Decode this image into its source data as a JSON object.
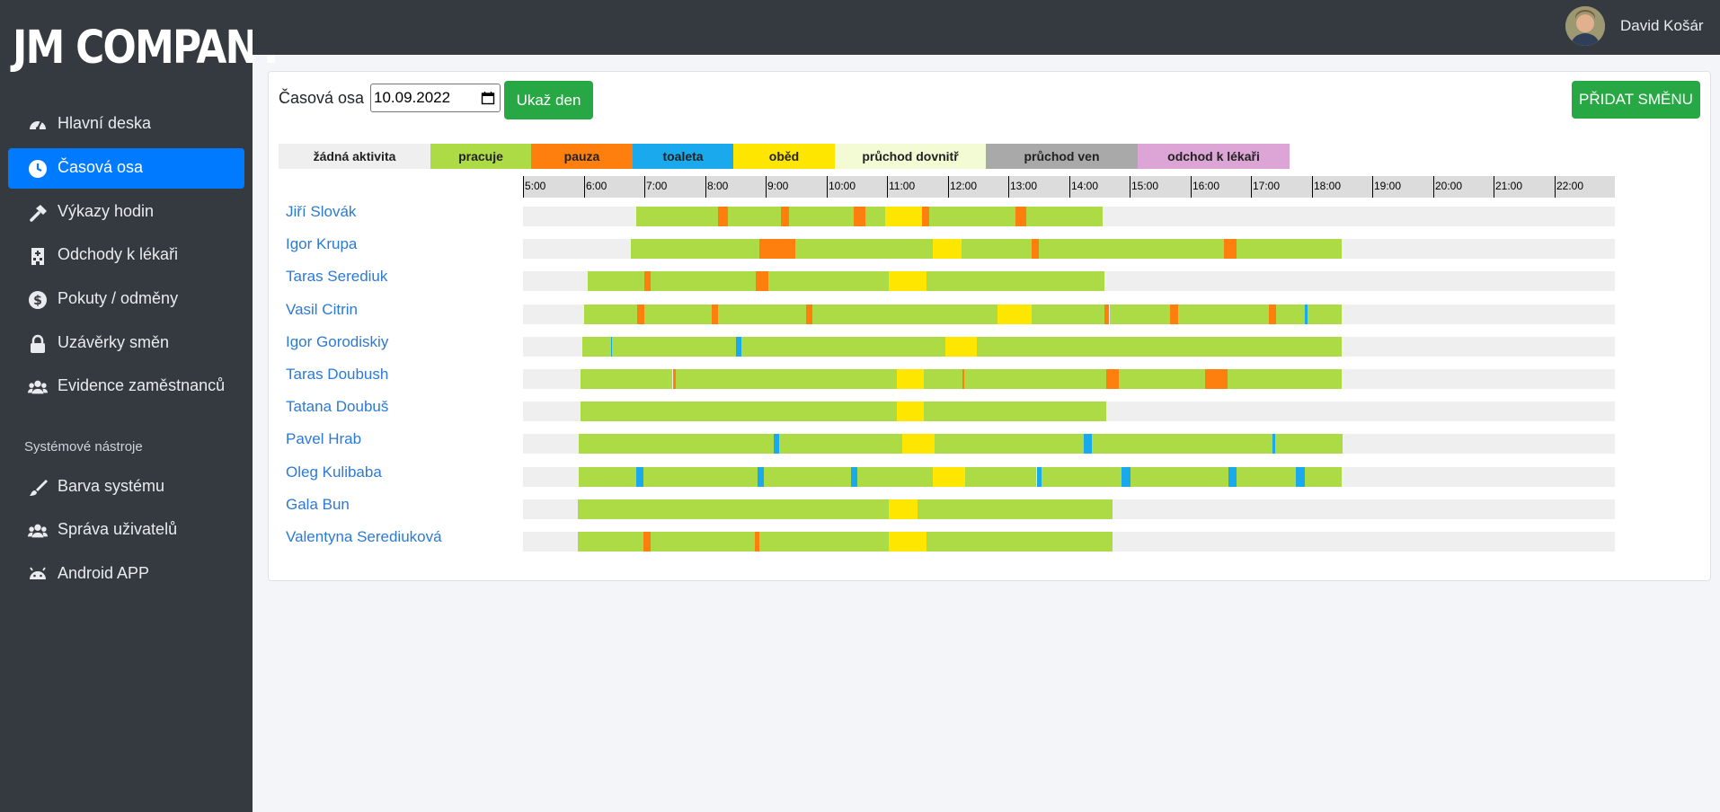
{
  "brand": {
    "logo_text": "JM COMPANY"
  },
  "sidebar": {
    "items": [
      {
        "label": "Hlavní deska",
        "icon": "dashboard-icon",
        "active": false
      },
      {
        "label": "Časová osa",
        "icon": "clock-icon",
        "active": true
      },
      {
        "label": "Výkazy hodin",
        "icon": "hammer-icon",
        "active": false
      },
      {
        "label": "Odchody k lékaři",
        "icon": "hospital-icon",
        "active": false
      },
      {
        "label": "Pokuty / odměny",
        "icon": "money-icon",
        "active": false
      },
      {
        "label": "Uzávěrky směn",
        "icon": "lock-icon",
        "active": false
      },
      {
        "label": "Evidence zaměstnanců",
        "icon": "users-icon",
        "active": false
      }
    ],
    "section_title": "Systémové nástroje",
    "tools": [
      {
        "label": "Barva systému",
        "icon": "paint-brush-icon"
      },
      {
        "label": "Správa uživatelů",
        "icon": "users-icon"
      },
      {
        "label": "Android APP",
        "icon": "android-icon"
      }
    ]
  },
  "topbar": {
    "user_name": "David Košár"
  },
  "toolbar": {
    "timeline_label": "Časová osa",
    "date_value": "10.09.2022",
    "show_day_label": "Ukaž den",
    "add_shift_label": "PŘIDAT SMĚNU"
  },
  "legend": [
    {
      "label": "žádná aktivita",
      "color": "#efefef"
    },
    {
      "label": "pracuje",
      "color": "#addb45"
    },
    {
      "label": "pauza",
      "color": "#ff7f0e"
    },
    {
      "label": "toaleta",
      "color": "#1aa9ec"
    },
    {
      "label": "oběd",
      "color": "#ffe600"
    },
    {
      "label": "průchod dovnitř",
      "color": "#f2fbd3"
    },
    {
      "label": "průchod ven",
      "color": "#a9a9a9"
    },
    {
      "label": "odchod k lékaři",
      "color": "#dda5d6"
    }
  ],
  "timeline": {
    "start_hour": 5,
    "end_hour": 23,
    "hour_labels": [
      "5:00",
      "6:00",
      "7:00",
      "8:00",
      "9:00",
      "10:00",
      "11:00",
      "12:00",
      "13:00",
      "14:00",
      "15:00",
      "16:00",
      "17:00",
      "18:00",
      "19:00",
      "20:00",
      "21:00",
      "22:00"
    ],
    "employees": [
      {
        "name": "Jiří Slovák",
        "segments": [
          [
            "06:52",
            "08:13",
            "pracuje"
          ],
          [
            "08:13",
            "08:23",
            "pauza"
          ],
          [
            "08:23",
            "09:15",
            "pracuje"
          ],
          [
            "09:15",
            "09:23",
            "pauza"
          ],
          [
            "09:23",
            "10:27",
            "pracuje"
          ],
          [
            "10:27",
            "10:39",
            "pauza"
          ],
          [
            "10:39",
            "10:58",
            "pracuje"
          ],
          [
            "10:58",
            "11:35",
            "oběd"
          ],
          [
            "11:35",
            "11:42",
            "pauza"
          ],
          [
            "11:42",
            "13:07",
            "pracuje"
          ],
          [
            "13:07",
            "13:18",
            "pauza"
          ],
          [
            "13:18",
            "14:33",
            "pracuje"
          ]
        ]
      },
      {
        "name": "Igor Krupa",
        "segments": [
          [
            "06:47",
            "08:54",
            "pracuje"
          ],
          [
            "08:54",
            "09:29",
            "pauza"
          ],
          [
            "09:29",
            "11:45",
            "pracuje"
          ],
          [
            "11:45",
            "12:14",
            "oběd"
          ],
          [
            "12:14",
            "13:23",
            "pracuje"
          ],
          [
            "13:23",
            "13:30",
            "pauza"
          ],
          [
            "13:30",
            "16:33",
            "pracuje"
          ],
          [
            "16:33",
            "16:46",
            "pauza"
          ],
          [
            "16:46",
            "18:30",
            "pracuje"
          ]
        ]
      },
      {
        "name": "Taras Serediuk",
        "segments": [
          [
            "06:04",
            "07:00",
            "pracuje"
          ],
          [
            "07:00",
            "07:06",
            "pauza"
          ],
          [
            "07:06",
            "08:50",
            "pracuje"
          ],
          [
            "08:50",
            "09:03",
            "pauza"
          ],
          [
            "09:03",
            "11:02",
            "pracuje"
          ],
          [
            "11:02",
            "11:39",
            "oběd"
          ],
          [
            "11:39",
            "14:35",
            "pracuje"
          ]
        ]
      },
      {
        "name": "Vasil Citrin",
        "segments": [
          [
            "06:00",
            "06:53",
            "pracuje"
          ],
          [
            "06:53",
            "07:00",
            "pauza"
          ],
          [
            "07:00",
            "08:07",
            "pracuje"
          ],
          [
            "08:07",
            "08:13",
            "pauza"
          ],
          [
            "08:13",
            "09:40",
            "pracuje"
          ],
          [
            "09:40",
            "09:46",
            "pauza"
          ],
          [
            "09:46",
            "12:49",
            "pracuje"
          ],
          [
            "12:49",
            "13:23",
            "oběd"
          ],
          [
            "13:23",
            "14:35",
            "pracuje"
          ],
          [
            "14:35",
            "14:40",
            "pauza"
          ],
          [
            "14:40",
            "15:40",
            "pracuje"
          ],
          [
            "15:40",
            "15:48",
            "pauza"
          ],
          [
            "15:48",
            "17:18",
            "pracuje"
          ],
          [
            "17:18",
            "17:25",
            "pauza"
          ],
          [
            "17:25",
            "17:53",
            "pracuje"
          ],
          [
            "17:53",
            "17:56",
            "toaleta"
          ],
          [
            "17:56",
            "18:30",
            "pracuje"
          ]
        ]
      },
      {
        "name": "Igor Gorodiskiy",
        "segments": [
          [
            "05:59",
            "06:27",
            "pracuje"
          ],
          [
            "06:27",
            "06:28",
            "toaleta"
          ],
          [
            "06:28",
            "08:31",
            "pracuje"
          ],
          [
            "08:31",
            "08:36",
            "toaleta"
          ],
          [
            "08:36",
            "11:58",
            "pracuje"
          ],
          [
            "11:58",
            "12:29",
            "oběd"
          ],
          [
            "12:29",
            "18:30",
            "pracuje"
          ]
        ]
      },
      {
        "name": "Taras Doubush",
        "segments": [
          [
            "05:57",
            "07:28",
            "pracuje"
          ],
          [
            "07:28",
            "07:31",
            "pauza"
          ],
          [
            "07:31",
            "11:10",
            "pracuje"
          ],
          [
            "11:10",
            "11:36",
            "oběd"
          ],
          [
            "11:36",
            "12:15",
            "pracuje"
          ],
          [
            "12:15",
            "12:16",
            "pauza"
          ],
          [
            "12:16",
            "14:37",
            "pracuje"
          ],
          [
            "14:37",
            "14:49",
            "pauza"
          ],
          [
            "14:49",
            "16:15",
            "pracuje"
          ],
          [
            "16:15",
            "16:37",
            "pauza"
          ],
          [
            "16:37",
            "18:30",
            "pracuje"
          ]
        ]
      },
      {
        "name": "Tatana Doubuš",
        "segments": [
          [
            "05:57",
            "11:10",
            "pracuje"
          ],
          [
            "11:10",
            "11:36",
            "oběd"
          ],
          [
            "11:36",
            "14:37",
            "pracuje"
          ]
        ]
      },
      {
        "name": "Pavel Hrab",
        "segments": [
          [
            "05:55",
            "09:08",
            "pracuje"
          ],
          [
            "09:08",
            "09:13",
            "toaleta"
          ],
          [
            "09:13",
            "11:15",
            "pracuje"
          ],
          [
            "11:15",
            "11:47",
            "oběd"
          ],
          [
            "11:47",
            "14:15",
            "pracuje"
          ],
          [
            "14:15",
            "14:23",
            "toaleta"
          ],
          [
            "14:23",
            "17:21",
            "pracuje"
          ],
          [
            "17:21",
            "17:24",
            "toaleta"
          ],
          [
            "17:24",
            "18:31",
            "pracuje"
          ]
        ]
      },
      {
        "name": "Oleg Kulibaba",
        "segments": [
          [
            "05:55",
            "06:52",
            "pracuje"
          ],
          [
            "06:52",
            "06:59",
            "toaleta"
          ],
          [
            "06:59",
            "08:52",
            "pracuje"
          ],
          [
            "08:52",
            "08:58",
            "toaleta"
          ],
          [
            "08:58",
            "10:24",
            "pracuje"
          ],
          [
            "10:24",
            "10:31",
            "toaleta"
          ],
          [
            "10:31",
            "11:45",
            "pracuje"
          ],
          [
            "11:45",
            "12:17",
            "oběd"
          ],
          [
            "12:17",
            "13:28",
            "pracuje"
          ],
          [
            "13:28",
            "13:33",
            "toaleta"
          ],
          [
            "13:33",
            "14:52",
            "pracuje"
          ],
          [
            "14:52",
            "15:01",
            "toaleta"
          ],
          [
            "15:01",
            "16:38",
            "pracuje"
          ],
          [
            "16:38",
            "16:46",
            "toaleta"
          ],
          [
            "16:46",
            "17:44",
            "pracuje"
          ],
          [
            "17:44",
            "17:53",
            "toaleta"
          ],
          [
            "17:53",
            "18:30",
            "pracuje"
          ]
        ]
      },
      {
        "name": "Gala Bun",
        "segments": [
          [
            "05:54",
            "11:02",
            "pracuje"
          ],
          [
            "11:02",
            "11:30",
            "oběd"
          ],
          [
            "11:30",
            "14:43",
            "pracuje"
          ]
        ]
      },
      {
        "name": "Valentyna Serediuková",
        "segments": [
          [
            "05:54",
            "06:59",
            "pracuje"
          ],
          [
            "06:59",
            "07:06",
            "pauza"
          ],
          [
            "07:06",
            "08:49",
            "pracuje"
          ],
          [
            "08:49",
            "08:54",
            "pauza"
          ],
          [
            "08:54",
            "11:02",
            "pracuje"
          ],
          [
            "11:02",
            "11:39",
            "oběd"
          ],
          [
            "11:39",
            "14:43",
            "pracuje"
          ]
        ]
      }
    ]
  }
}
